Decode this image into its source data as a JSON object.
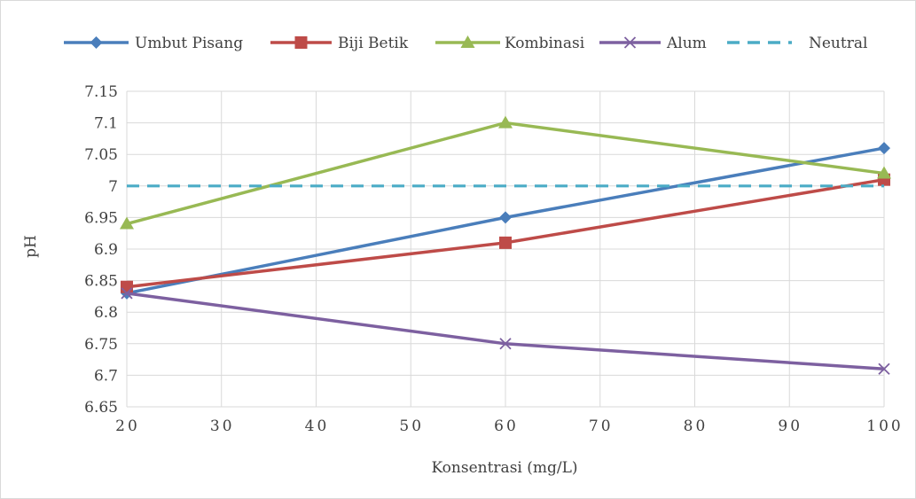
{
  "chart_data": {
    "type": "line",
    "xlabel": "Konsentrasi (mg/L)",
    "ylabel": "pH",
    "xlim": [
      20,
      100
    ],
    "ylim": [
      6.65,
      7.15
    ],
    "x_ticks": [
      20,
      30,
      40,
      50,
      60,
      70,
      80,
      90,
      100
    ],
    "y_ticks": [
      6.65,
      6.7,
      6.75,
      6.8,
      6.85,
      6.9,
      6.95,
      7,
      7.05,
      7.1,
      7.15
    ],
    "x_tick_labels": [
      "20",
      "30",
      "40",
      "50",
      "60",
      "70",
      "80",
      "90",
      "100"
    ],
    "y_tick_labels": [
      "6.65",
      "6.7",
      "6.75",
      "6.8",
      "6.85",
      "6.9",
      "6.95",
      "7",
      "7.05",
      "7.1",
      "7.15"
    ],
    "grid": true,
    "legend_position": "top",
    "series": [
      {
        "name": "Umbut Pisang",
        "x": [
          20,
          60,
          100
        ],
        "values": [
          6.83,
          6.95,
          7.06
        ],
        "color": "#4a7ebb",
        "marker": "diamond",
        "dash": false
      },
      {
        "name": "Biji Betik",
        "x": [
          20,
          60,
          100
        ],
        "values": [
          6.84,
          6.91,
          7.01
        ],
        "color": "#be4b48",
        "marker": "square",
        "dash": false
      },
      {
        "name": "Kombinasi",
        "x": [
          20,
          60,
          100
        ],
        "values": [
          6.94,
          7.1,
          7.02
        ],
        "color": "#98b954",
        "marker": "triangle",
        "dash": false
      },
      {
        "name": "Alum",
        "x": [
          20,
          60,
          100
        ],
        "values": [
          6.83,
          6.75,
          6.71
        ],
        "color": "#7d60a0",
        "marker": "x",
        "dash": false
      },
      {
        "name": "Neutral",
        "x": [
          20,
          100
        ],
        "values": [
          7,
          7
        ],
        "color": "#4bacc6",
        "marker": "none",
        "dash": true
      }
    ]
  }
}
